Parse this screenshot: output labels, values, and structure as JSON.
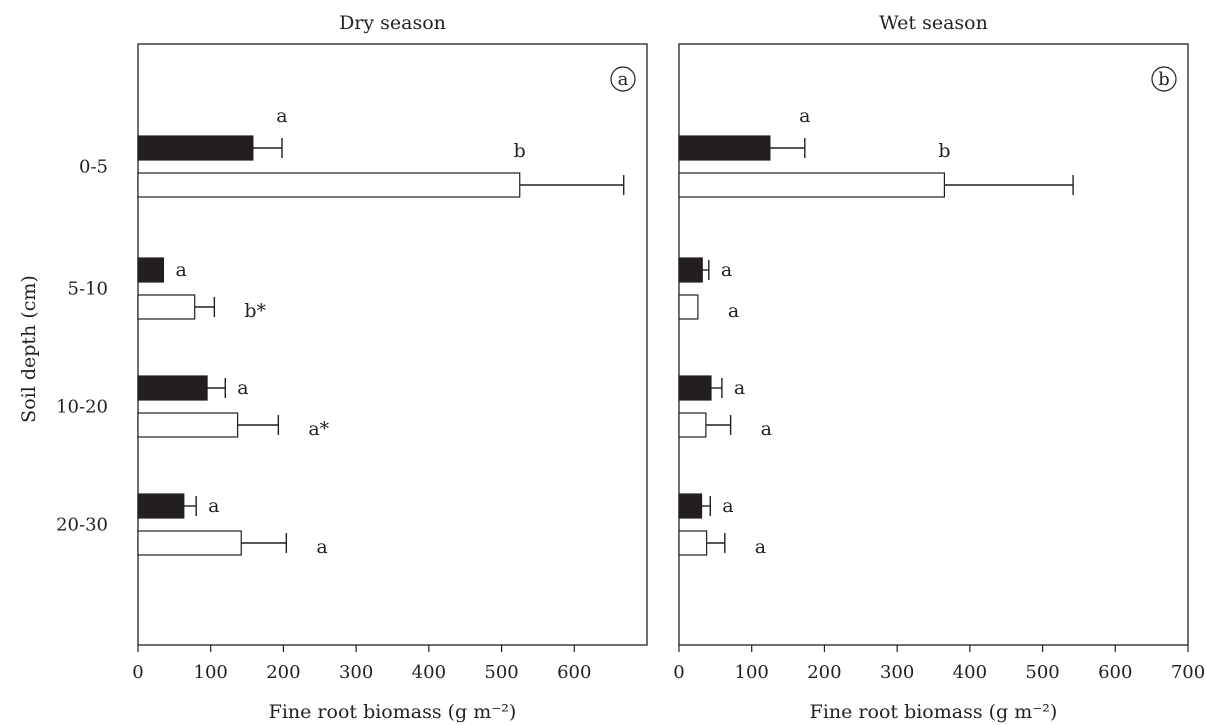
{
  "figure": {
    "ylabel": "Soil depth (cm)"
  },
  "chart_data": [
    {
      "type": "bar",
      "orientation": "horizontal",
      "title": "Dry season",
      "panel_label": "a",
      "xlabel": "Fine root biomass (g m⁻²)",
      "ylabel": "Soil depth (cm)",
      "categories": [
        "0-5",
        "5-10",
        "10-20",
        "20-30"
      ],
      "xlim": [
        0,
        700
      ],
      "xticks": [
        "0",
        "100",
        "200",
        "300",
        "400",
        "500",
        "600"
      ],
      "series": [
        {
          "color": "#231f20",
          "values": [
            158,
            35,
            95,
            63
          ],
          "errors": [
            40,
            0,
            25,
            17
          ],
          "letters": [
            "a",
            "a",
            "a",
            "a"
          ]
        },
        {
          "color": "#ffffff",
          "values": [
            525,
            78,
            137,
            142
          ],
          "errors": [
            143,
            27,
            56,
            62
          ],
          "letters": [
            "b",
            "b*",
            "a*",
            "a"
          ]
        }
      ]
    },
    {
      "type": "bar",
      "orientation": "horizontal",
      "title": "Wet season",
      "panel_label": "b",
      "xlabel": "Fine root biomass (g m⁻²)",
      "categories": [
        "0-5",
        "5-10",
        "10-20",
        "20-30"
      ],
      "xlim": [
        0,
        700
      ],
      "xticks": [
        "0",
        "100",
        "200",
        "300",
        "400",
        "500",
        "600",
        "700"
      ],
      "series": [
        {
          "color": "#231f20",
          "values": [
            125,
            32,
            44,
            31
          ],
          "errors": [
            48,
            9,
            15,
            12
          ],
          "letters": [
            "a",
            "a",
            "a",
            "a"
          ]
        },
        {
          "color": "#ffffff",
          "values": [
            365,
            26,
            37,
            38
          ],
          "errors": [
            177,
            0,
            34,
            25
          ],
          "letters": [
            "b",
            "a",
            "a",
            "a"
          ]
        }
      ]
    }
  ]
}
